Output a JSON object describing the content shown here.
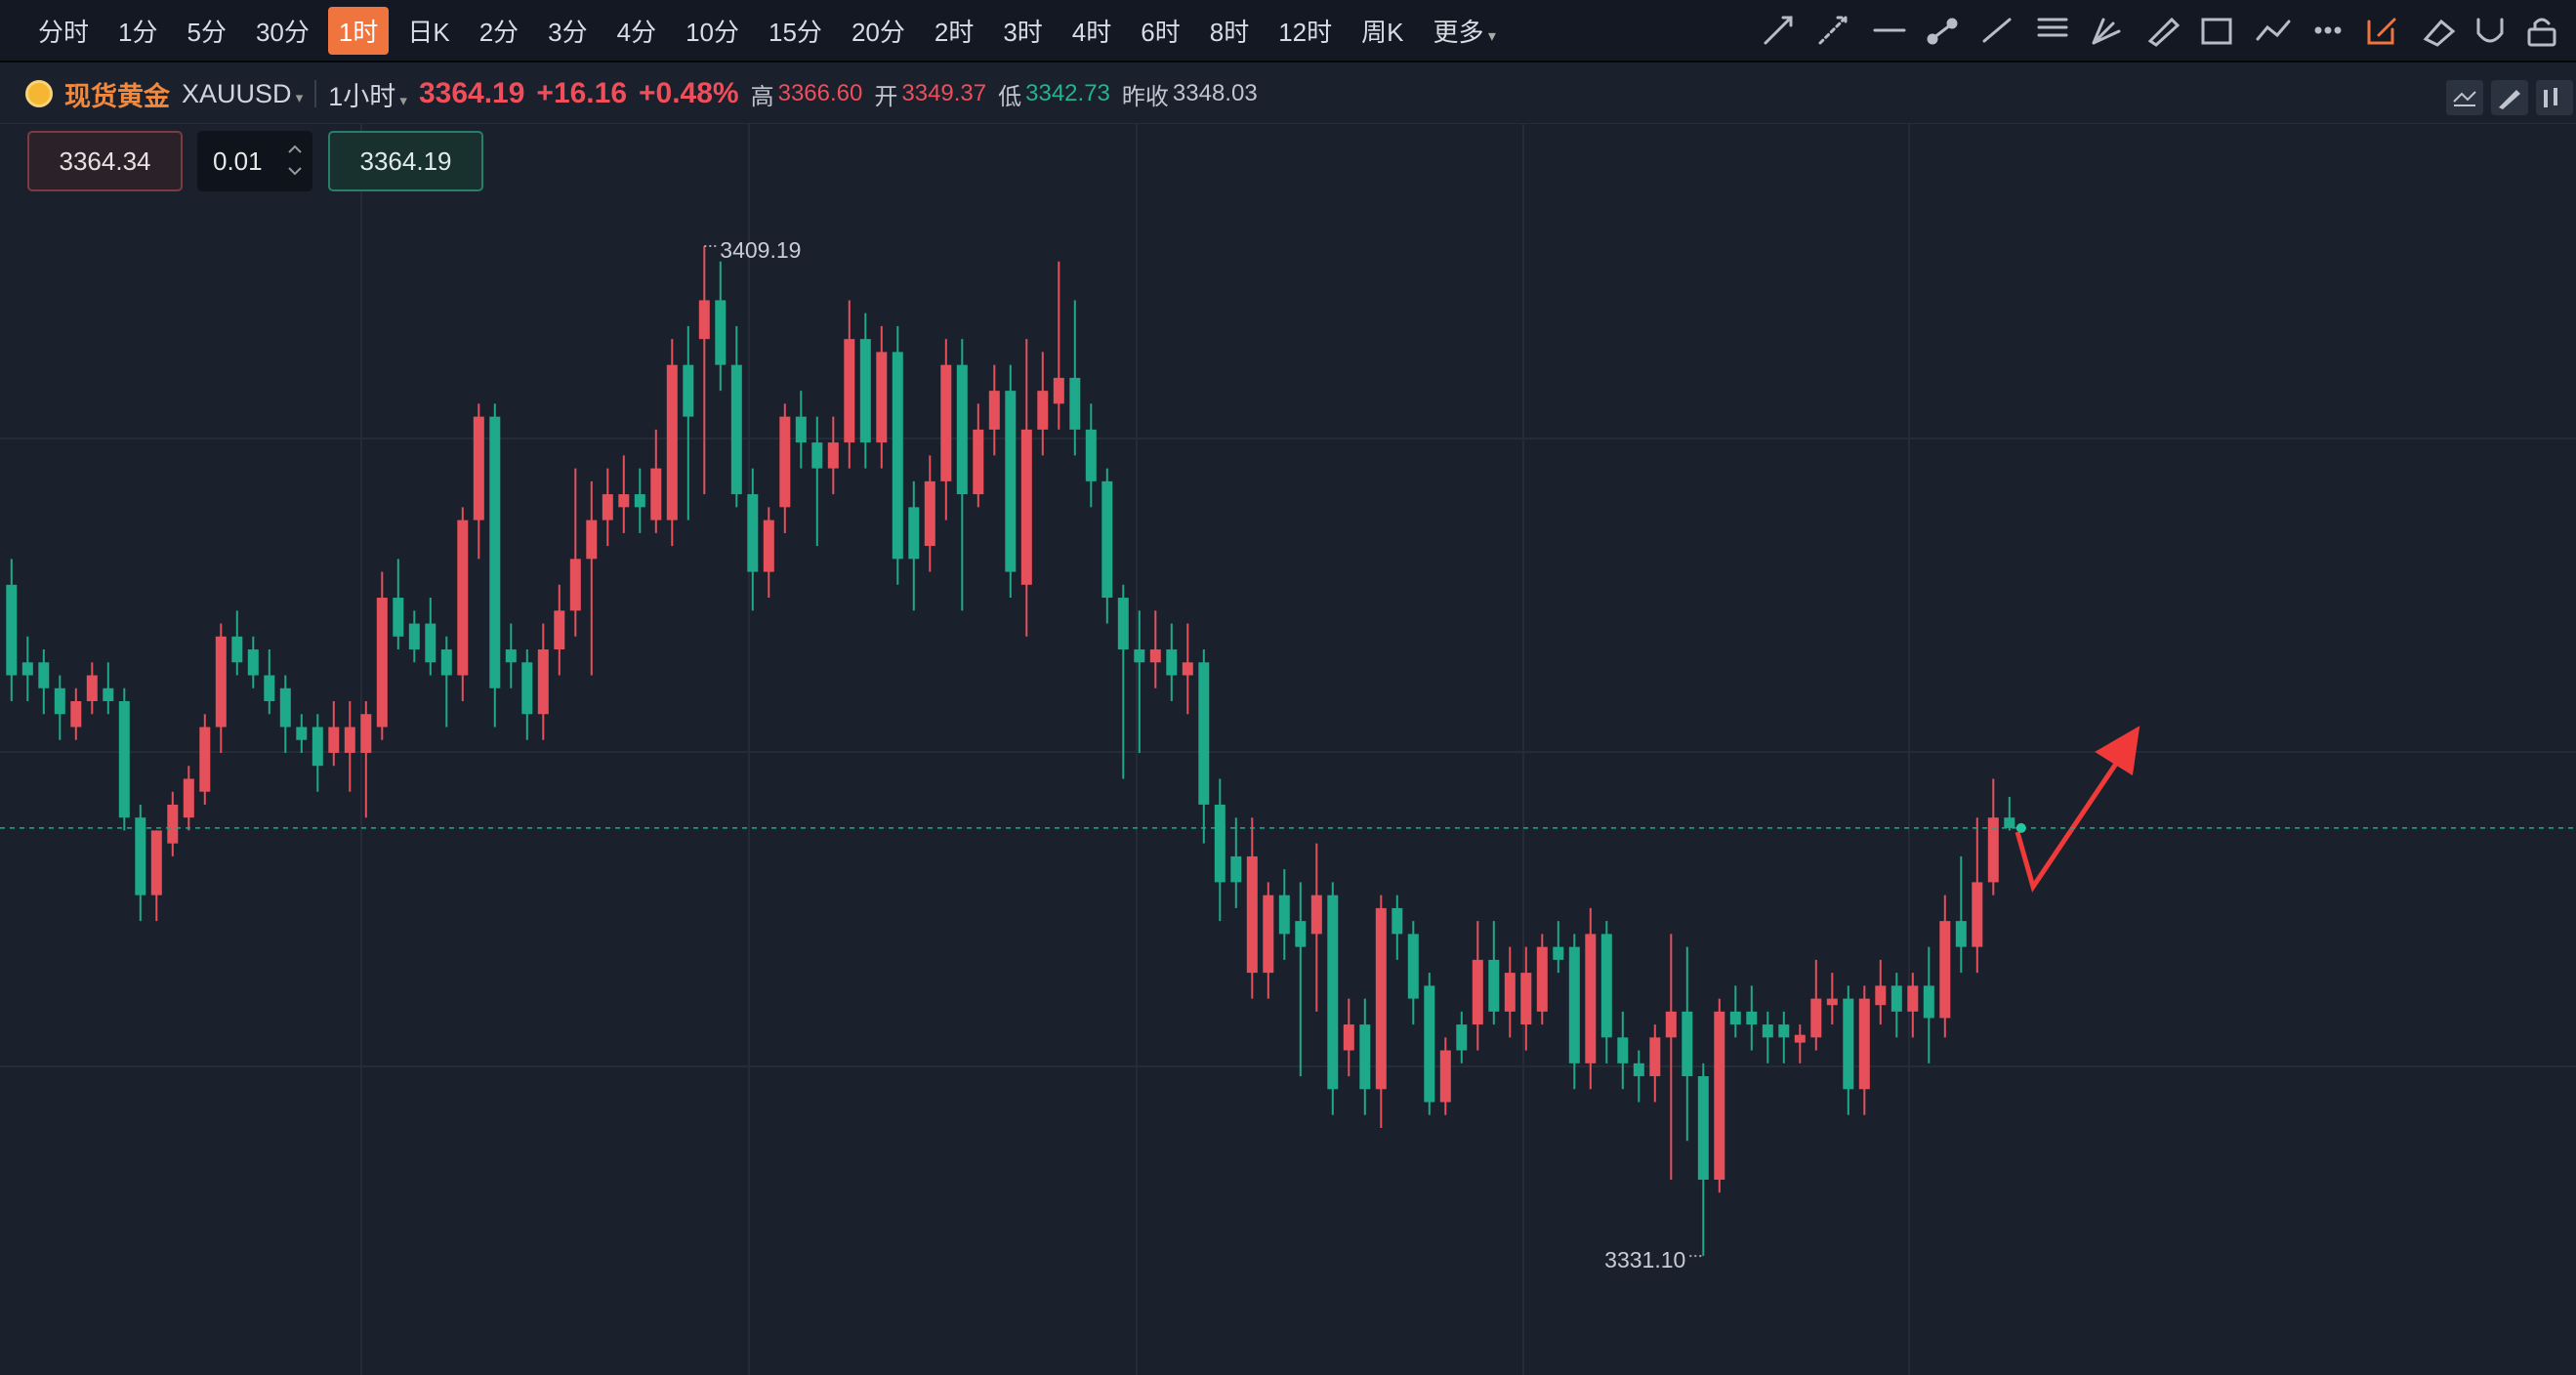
{
  "toolbar": {
    "intervals": [
      "分时",
      "1分",
      "5分",
      "30分",
      "1时",
      "日K",
      "2分",
      "3分",
      "4分",
      "10分",
      "15分",
      "20分",
      "2时",
      "3时",
      "4时",
      "6时",
      "8时",
      "12时",
      "周K",
      "更多"
    ],
    "active": 4
  },
  "quote": {
    "name": "现货黄金",
    "symbol": "XAUUSD",
    "period": "1小时",
    "price": "3364.19",
    "change": "+16.16",
    "change_pct": "+0.48%",
    "high_label": "高",
    "high": "3366.60",
    "open_label": "开",
    "open": "3349.37",
    "low_label": "低",
    "low": "3342.73",
    "prev_close_label": "昨收",
    "prev_close": "3348.03"
  },
  "order": {
    "sell": "3364.34",
    "qty": "0.01",
    "buy": "3364.19"
  },
  "chart_data": {
    "type": "candlestick",
    "up_color": "#e5505b",
    "down_color": "#1fa98b",
    "ylim": [
      3321.9,
      3418.7
    ],
    "last_price": 3364.19,
    "annotations": [
      {
        "value": 3409.19,
        "label": "3409.19"
      },
      {
        "value": 3331.1,
        "label": "3331.10"
      }
    ],
    "candles": [
      [
        3383,
        3385,
        3374,
        3376
      ],
      [
        3377,
        3379,
        3374,
        3376
      ],
      [
        3377,
        3378,
        3373,
        3375
      ],
      [
        3375,
        3376,
        3371,
        3373
      ],
      [
        3372,
        3375,
        3371,
        3374
      ],
      [
        3374,
        3377,
        3373,
        3376
      ],
      [
        3375,
        3377,
        3373,
        3374
      ],
      [
        3374,
        3375,
        3364,
        3365
      ],
      [
        3365,
        3366,
        3357,
        3359
      ],
      [
        3359,
        3364,
        3357,
        3364
      ],
      [
        3363,
        3367,
        3362,
        3366
      ],
      [
        3365,
        3369,
        3364,
        3368
      ],
      [
        3367,
        3373,
        3366,
        3372
      ],
      [
        3372,
        3380,
        3370,
        3379
      ],
      [
        3379,
        3381,
        3376,
        3377
      ],
      [
        3378,
        3379,
        3375,
        3376
      ],
      [
        3376,
        3378,
        3373,
        3374
      ],
      [
        3375,
        3376,
        3370,
        3372
      ],
      [
        3372,
        3373,
        3370,
        3371
      ],
      [
        3372,
        3373,
        3367,
        3369
      ],
      [
        3370,
        3374,
        3369,
        3372
      ],
      [
        3370,
        3374,
        3367,
        3372
      ],
      [
        3370,
        3374,
        3365,
        3373
      ],
      [
        3372,
        3384,
        3371,
        3382
      ],
      [
        3382,
        3385,
        3378,
        3379
      ],
      [
        3380,
        3381,
        3377,
        3378
      ],
      [
        3380,
        3382,
        3376,
        3377
      ],
      [
        3378,
        3379,
        3372,
        3376
      ],
      [
        3376,
        3389,
        3374,
        3388
      ],
      [
        3388,
        3397,
        3385,
        3396
      ],
      [
        3396,
        3397,
        3372,
        3375
      ],
      [
        3378,
        3380,
        3375,
        3377
      ],
      [
        3377,
        3378,
        3371,
        3373
      ],
      [
        3373,
        3380,
        3371,
        3378
      ],
      [
        3378,
        3383,
        3376,
        3381
      ],
      [
        3381,
        3392,
        3379,
        3385
      ],
      [
        3385,
        3391,
        3376,
        3388
      ],
      [
        3388,
        3392,
        3386,
        3390
      ],
      [
        3389,
        3393,
        3387,
        3390
      ],
      [
        3390,
        3392,
        3387,
        3389
      ],
      [
        3388,
        3395,
        3387,
        3392
      ],
      [
        3388,
        3402,
        3386,
        3400
      ],
      [
        3400,
        3403,
        3388,
        3396
      ],
      [
        3402,
        3409.19,
        3390,
        3405
      ],
      [
        3405,
        3408,
        3398,
        3400
      ],
      [
        3400,
        3403,
        3389,
        3390
      ],
      [
        3390,
        3392,
        3381,
        3384
      ],
      [
        3384,
        3389,
        3382,
        3388
      ],
      [
        3389,
        3397,
        3387,
        3396
      ],
      [
        3396,
        3398,
        3392,
        3394
      ],
      [
        3394,
        3396,
        3386,
        3392
      ],
      [
        3392,
        3396,
        3390,
        3394
      ],
      [
        3394,
        3405,
        3392,
        3402
      ],
      [
        3402,
        3404,
        3392,
        3394
      ],
      [
        3394,
        3403,
        3392,
        3401
      ],
      [
        3401,
        3403,
        3383,
        3385
      ],
      [
        3389,
        3391,
        3381,
        3385
      ],
      [
        3386,
        3393,
        3384,
        3391
      ],
      [
        3391,
        3402,
        3388,
        3400
      ],
      [
        3400,
        3402,
        3381,
        3390
      ],
      [
        3390,
        3397,
        3389,
        3395
      ],
      [
        3395,
        3400,
        3393,
        3398
      ],
      [
        3398,
        3400,
        3382,
        3384
      ],
      [
        3383,
        3402,
        3379,
        3395
      ],
      [
        3395,
        3401,
        3393,
        3398
      ],
      [
        3397,
        3408,
        3395,
        3399
      ],
      [
        3399,
        3405,
        3393,
        3395
      ],
      [
        3395,
        3397,
        3389,
        3391
      ],
      [
        3391,
        3392,
        3380,
        3382
      ],
      [
        3382,
        3383,
        3368,
        3378
      ],
      [
        3378,
        3381,
        3370,
        3377
      ],
      [
        3377,
        3381,
        3375,
        3378
      ],
      [
        3378,
        3380,
        3374,
        3376
      ],
      [
        3376,
        3380,
        3373,
        3377
      ],
      [
        3377,
        3378,
        3363,
        3366
      ],
      [
        3366,
        3368,
        3357,
        3360
      ],
      [
        3362,
        3365,
        3358,
        3360
      ],
      [
        3353,
        3365,
        3351,
        3362
      ],
      [
        3353,
        3360,
        3351,
        3359
      ],
      [
        3359,
        3361,
        3354,
        3356
      ],
      [
        3357,
        3360,
        3345,
        3355
      ],
      [
        3356,
        3363,
        3350,
        3359
      ],
      [
        3359,
        3360,
        3342,
        3344
      ],
      [
        3347,
        3351,
        3345,
        3349
      ],
      [
        3349,
        3351,
        3342,
        3344
      ],
      [
        3344,
        3359,
        3341,
        3358
      ],
      [
        3358,
        3359,
        3354,
        3356
      ],
      [
        3356,
        3357,
        3349,
        3351
      ],
      [
        3352,
        3353,
        3342,
        3343
      ],
      [
        3343,
        3348,
        3342,
        3347
      ],
      [
        3349,
        3350,
        3346,
        3347
      ],
      [
        3349,
        3357,
        3347,
        3354
      ],
      [
        3354,
        3357,
        3349,
        3350
      ],
      [
        3350,
        3355,
        3348,
        3353
      ],
      [
        3349,
        3355,
        3347,
        3353
      ],
      [
        3350,
        3356,
        3349,
        3355
      ],
      [
        3355,
        3357,
        3353,
        3354
      ],
      [
        3355,
        3356,
        3344,
        3346
      ],
      [
        3346,
        3358,
        3344,
        3356
      ],
      [
        3356,
        3357,
        3346,
        3348
      ],
      [
        3348,
        3350,
        3344,
        3346
      ],
      [
        3346,
        3347,
        3343,
        3345
      ],
      [
        3345,
        3349,
        3343,
        3348
      ],
      [
        3348,
        3356,
        3337,
        3350
      ],
      [
        3350,
        3355,
        3340,
        3345
      ],
      [
        3345,
        3346,
        3331.1,
        3337
      ],
      [
        3337,
        3351,
        3336,
        3350
      ],
      [
        3350,
        3352,
        3348,
        3349
      ],
      [
        3350,
        3352,
        3347,
        3349
      ],
      [
        3349,
        3350,
        3346,
        3348
      ],
      [
        3349,
        3350,
        3346,
        3348
      ],
      [
        3347.6,
        3349,
        3346,
        3348.2
      ],
      [
        3348,
        3354,
        3347,
        3351
      ],
      [
        3350.5,
        3353,
        3349,
        3351
      ],
      [
        3351,
        3352,
        3342,
        3344
      ],
      [
        3344,
        3352,
        3342,
        3351
      ],
      [
        3350.5,
        3354,
        3349,
        3352
      ],
      [
        3352,
        3353,
        3348,
        3350
      ],
      [
        3350,
        3353,
        3348,
        3352
      ],
      [
        3352,
        3355,
        3346,
        3349.5
      ],
      [
        3349.5,
        3359,
        3348,
        3357
      ],
      [
        3357,
        3362,
        3353,
        3355
      ],
      [
        3355,
        3365,
        3353,
        3360
      ],
      [
        3360,
        3368,
        3359,
        3365
      ],
      [
        3365,
        3366.6,
        3364,
        3364.19
      ]
    ]
  }
}
